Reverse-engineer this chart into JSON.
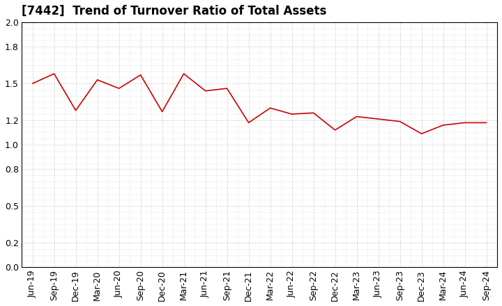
{
  "title": "[7442]  Trend of Turnover Ratio of Total Assets",
  "labels": [
    "Jun-19",
    "Sep-19",
    "Dec-19",
    "Mar-20",
    "Jun-20",
    "Sep-20",
    "Dec-20",
    "Mar-21",
    "Jun-21",
    "Sep-21",
    "Dec-21",
    "Mar-22",
    "Jun-22",
    "Sep-22",
    "Dec-22",
    "Mar-23",
    "Jun-23",
    "Sep-23",
    "Dec-23",
    "Mar-24",
    "Jun-24",
    "Sep-24"
  ],
  "values": [
    1.5,
    1.58,
    1.28,
    1.53,
    1.46,
    1.57,
    1.27,
    1.58,
    1.44,
    1.46,
    1.18,
    1.3,
    1.25,
    1.26,
    1.12,
    1.23,
    1.21,
    1.19,
    1.09,
    1.16,
    1.18,
    1.18
  ],
  "line_color": "#cc0000",
  "background_color": "#ffffff",
  "grid_color": "#bbbbbb",
  "ylim": [
    0.0,
    2.0
  ],
  "yticks": [
    0.0,
    0.2,
    0.5,
    0.8,
    1.0,
    1.2,
    1.5,
    1.8,
    2.0
  ],
  "ytick_labels": [
    "0.0",
    "0.2",
    "0.5",
    "0.8",
    "1.0",
    "1.2",
    "1.5",
    "1.8",
    "2.0"
  ],
  "title_fontsize": 12,
  "tick_fontsize": 9
}
